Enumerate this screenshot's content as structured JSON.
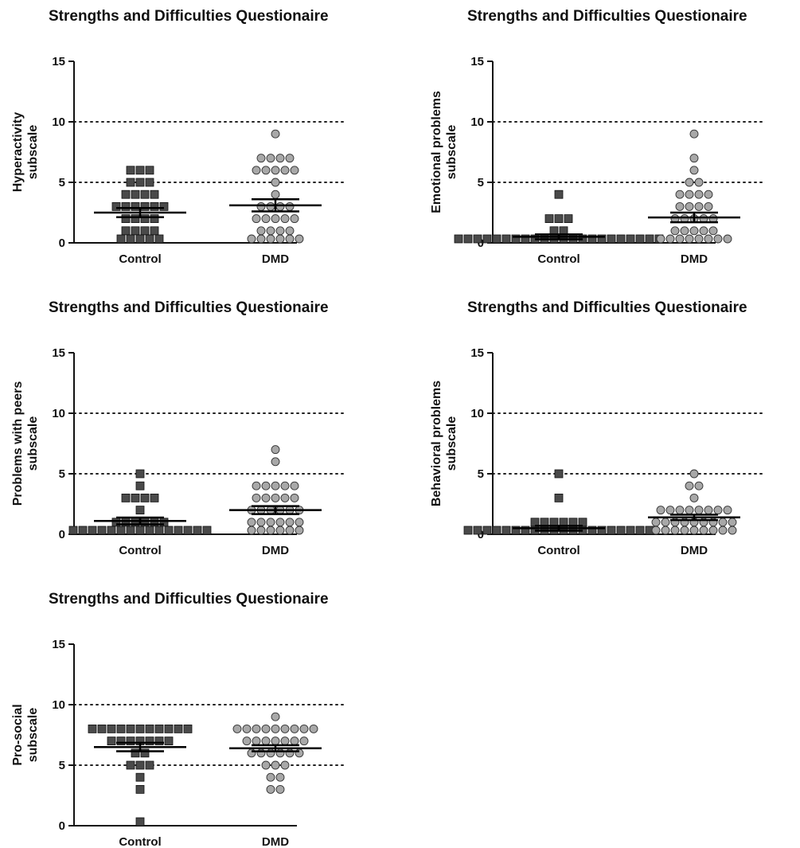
{
  "chart_data": [
    {
      "type": "scatter",
      "title": "Strengths and Difficulties Questionaire",
      "ylabel": [
        "Hyperactivity",
        "subscale"
      ],
      "categories": [
        "Control",
        "DMD"
      ],
      "ylim": [
        0,
        15
      ],
      "yticks": [
        0,
        5,
        10,
        15
      ],
      "reference_lines": [
        5,
        10
      ],
      "grid": false,
      "series": [
        {
          "values": [
            6,
            6,
            6,
            5,
            5,
            5,
            4,
            4,
            4,
            4,
            3,
            3,
            3,
            3,
            3,
            3,
            2,
            2,
            2,
            2,
            1,
            1,
            1,
            1,
            0,
            0,
            0,
            0,
            0
          ],
          "mean": 2.5,
          "sem": 0.38,
          "marker": "square",
          "color": "#4a4a4a"
        },
        {
          "values": [
            9,
            7,
            7,
            7,
            7,
            6,
            6,
            6,
            6,
            6,
            5,
            4,
            3,
            3,
            3,
            3,
            2,
            2,
            2,
            2,
            2,
            1,
            1,
            1,
            1,
            0,
            0,
            0,
            0,
            0,
            0
          ],
          "mean": 3.1,
          "sem": 0.5,
          "marker": "circle",
          "color": "#a8a8a8"
        }
      ]
    },
    {
      "type": "scatter",
      "title": "Strengths and Difficulties Questionaire",
      "ylabel": [
        "Emotional problems",
        "subscale"
      ],
      "categories": [
        "Control",
        "DMD"
      ],
      "ylim": [
        0,
        15
      ],
      "yticks": [
        0,
        5,
        10,
        15
      ],
      "reference_lines": [
        5,
        10
      ],
      "grid": false,
      "series": [
        {
          "values": [
            4,
            2,
            2,
            2,
            1,
            1,
            0,
            0,
            0,
            0,
            0,
            0,
            0,
            0,
            0,
            0,
            0,
            0,
            0,
            0,
            0,
            0,
            0,
            0,
            0,
            0,
            0,
            0
          ],
          "mean": 0.5,
          "sem": 0.2,
          "marker": "square",
          "color": "#4a4a4a"
        },
        {
          "values": [
            9,
            7,
            6,
            5,
            5,
            4,
            4,
            4,
            4,
            3,
            3,
            3,
            3,
            2,
            2,
            2,
            2,
            2,
            1,
            1,
            1,
            1,
            1,
            0,
            0,
            0,
            0,
            0,
            0,
            0,
            0
          ],
          "mean": 2.1,
          "sem": 0.4,
          "marker": "circle",
          "color": "#a8a8a8"
        }
      ]
    },
    {
      "type": "scatter",
      "title": "Strengths and Difficulties Questionaire",
      "ylabel": [
        "Problems with peers",
        "subscale"
      ],
      "categories": [
        "Control",
        "DMD"
      ],
      "ylim": [
        0,
        15
      ],
      "yticks": [
        0,
        5,
        10,
        15
      ],
      "reference_lines": [
        5,
        10
      ],
      "grid": false,
      "series": [
        {
          "values": [
            5,
            4,
            3,
            3,
            3,
            3,
            2,
            1,
            1,
            1,
            1,
            1,
            1,
            0,
            0,
            0,
            0,
            0,
            0,
            0,
            0,
            0,
            0,
            0,
            0,
            0,
            0,
            0
          ],
          "mean": 1.1,
          "sem": 0.28,
          "marker": "square",
          "color": "#4a4a4a"
        },
        {
          "values": [
            7,
            6,
            4,
            4,
            4,
            4,
            4,
            3,
            3,
            3,
            3,
            3,
            2,
            2,
            2,
            2,
            2,
            2,
            1,
            1,
            1,
            1,
            1,
            1,
            0,
            0,
            0,
            0,
            0,
            0
          ],
          "mean": 2.0,
          "sem": 0.33,
          "marker": "circle",
          "color": "#a8a8a8"
        }
      ]
    },
    {
      "type": "scatter",
      "title": "Strengths and Difficulties Questionaire",
      "ylabel": [
        "Behavioral problems",
        "subscale"
      ],
      "categories": [
        "Control",
        "DMD"
      ],
      "ylim": [
        0,
        15
      ],
      "yticks": [
        0,
        5,
        10,
        15
      ],
      "reference_lines": [
        5,
        10
      ],
      "grid": false,
      "series": [
        {
          "values": [
            5,
            3,
            1,
            1,
            1,
            1,
            1,
            1,
            0,
            0,
            0,
            0,
            0,
            0,
            0,
            0,
            0,
            0,
            0,
            0,
            0,
            0,
            0,
            0,
            0,
            0,
            0,
            0
          ],
          "mean": 0.5,
          "sem": 0.2,
          "marker": "square",
          "color": "#4a4a4a"
        },
        {
          "values": [
            5,
            4,
            4,
            3,
            2,
            2,
            2,
            2,
            2,
            2,
            2,
            2,
            1,
            1,
            1,
            1,
            1,
            1,
            1,
            1,
            1,
            0,
            0,
            0,
            0,
            0,
            0,
            0,
            0,
            0
          ],
          "mean": 1.4,
          "sem": 0.22,
          "marker": "circle",
          "color": "#a8a8a8"
        }
      ]
    },
    {
      "type": "scatter",
      "title": "Strengths and Difficulties Questionaire",
      "ylabel": [
        "Pro-social",
        "subscale"
      ],
      "categories": [
        "Control",
        "DMD"
      ],
      "ylim": [
        0,
        15
      ],
      "yticks": [
        0,
        5,
        10,
        15
      ],
      "reference_lines": [
        5,
        10
      ],
      "grid": false,
      "series": [
        {
          "values": [
            8,
            8,
            8,
            8,
            8,
            8,
            8,
            8,
            8,
            8,
            8,
            7,
            7,
            7,
            7,
            7,
            7,
            7,
            6,
            6,
            5,
            5,
            5,
            4,
            3,
            0
          ],
          "mean": 6.5,
          "sem": 0.35,
          "marker": "square",
          "color": "#4a4a4a"
        },
        {
          "values": [
            9,
            8,
            8,
            8,
            8,
            8,
            8,
            8,
            8,
            8,
            7,
            7,
            7,
            7,
            7,
            7,
            7,
            6,
            6,
            6,
            6,
            6,
            6,
            5,
            5,
            5,
            4,
            4,
            3,
            3
          ],
          "mean": 6.4,
          "sem": 0.25,
          "marker": "circle",
          "color": "#a8a8a8"
        }
      ]
    }
  ]
}
